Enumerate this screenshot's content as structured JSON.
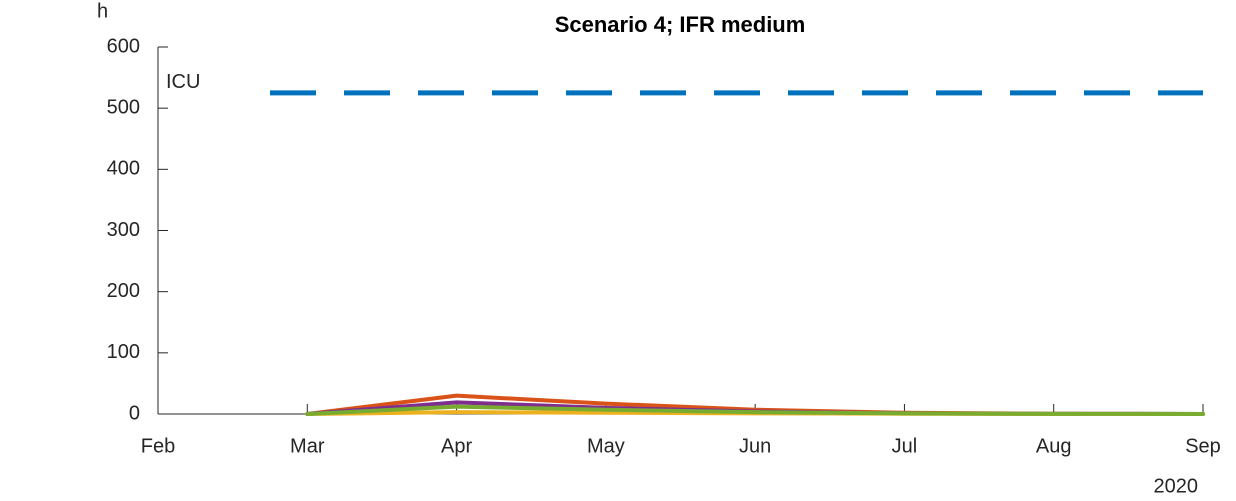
{
  "chart_data": {
    "type": "line",
    "title": "Scenario 4; IFR medium",
    "ylabel": "h",
    "year_label": "2020",
    "x": [
      "Feb",
      "Mar",
      "Apr",
      "May",
      "Jun",
      "Jul",
      "Aug",
      "Sep"
    ],
    "series": [
      {
        "color": "#D95319",
        "values": [
          null,
          0,
          30,
          17,
          7,
          2,
          0.5,
          0
        ]
      },
      {
        "color": "#7E2F8E",
        "values": [
          null,
          0,
          19,
          10,
          4,
          1,
          0.3,
          0
        ]
      },
      {
        "color": "#EDB120",
        "values": [
          null,
          0,
          3,
          2,
          1,
          0.5,
          0,
          0
        ]
      },
      {
        "color": "#77AC30",
        "values": [
          null,
          0,
          12,
          7,
          3,
          1,
          0.3,
          0
        ]
      }
    ],
    "threshold": {
      "value": 525,
      "label": "ICU",
      "color": "#0072BD"
    },
    "ylim": [
      0,
      600
    ],
    "yticks": [
      0,
      100,
      200,
      300,
      400,
      500,
      600
    ]
  }
}
